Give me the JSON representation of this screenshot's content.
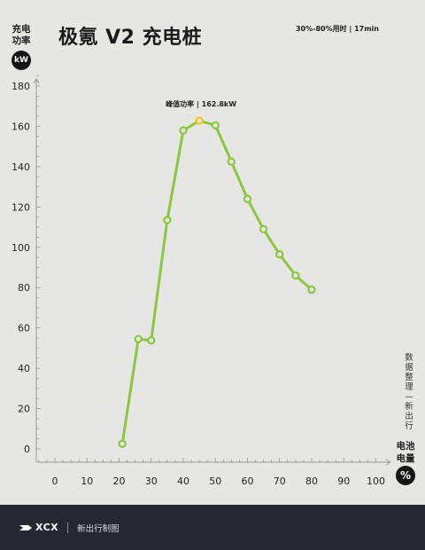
{
  "title": "极氪 V2 充电桩",
  "subtitle": "30%-80%用时 | 17min",
  "y_axis_title": "充电功率",
  "y_unit": "kW",
  "x_axis_title": "电池电量",
  "x_unit": "%",
  "side_note": "数据整理—新出行",
  "footer": {
    "logo_text": "XCX",
    "text": "新出行制图"
  },
  "colors": {
    "line": "#8dc63f",
    "peak": "#f5c518",
    "background": "#e6e6e4",
    "footer": "#232833"
  },
  "chart_data": {
    "type": "line",
    "x": [
      21,
      26,
      30,
      35,
      40,
      45,
      50,
      55,
      60,
      65,
      70,
      75,
      80
    ],
    "series": [
      {
        "values": [
          2.5,
          54.5,
          53.8,
          113.5,
          158,
          162.8,
          160.5,
          142.5,
          124,
          109,
          96.5,
          86,
          79
        ]
      }
    ],
    "peak": {
      "x": 45,
      "y": 162.8,
      "label": "峰值功率 | 162.8kW"
    },
    "xlim": [
      0,
      100
    ],
    "ylim": [
      0,
      180
    ],
    "x_ticks": [
      "0",
      "10",
      "20",
      "30",
      "40",
      "50",
      "60",
      "70",
      "80",
      "90",
      "100"
    ],
    "y_ticks": [
      "0",
      "20",
      "40",
      "60",
      "80",
      "100",
      "120",
      "140",
      "160",
      "180"
    ],
    "grid": false
  }
}
